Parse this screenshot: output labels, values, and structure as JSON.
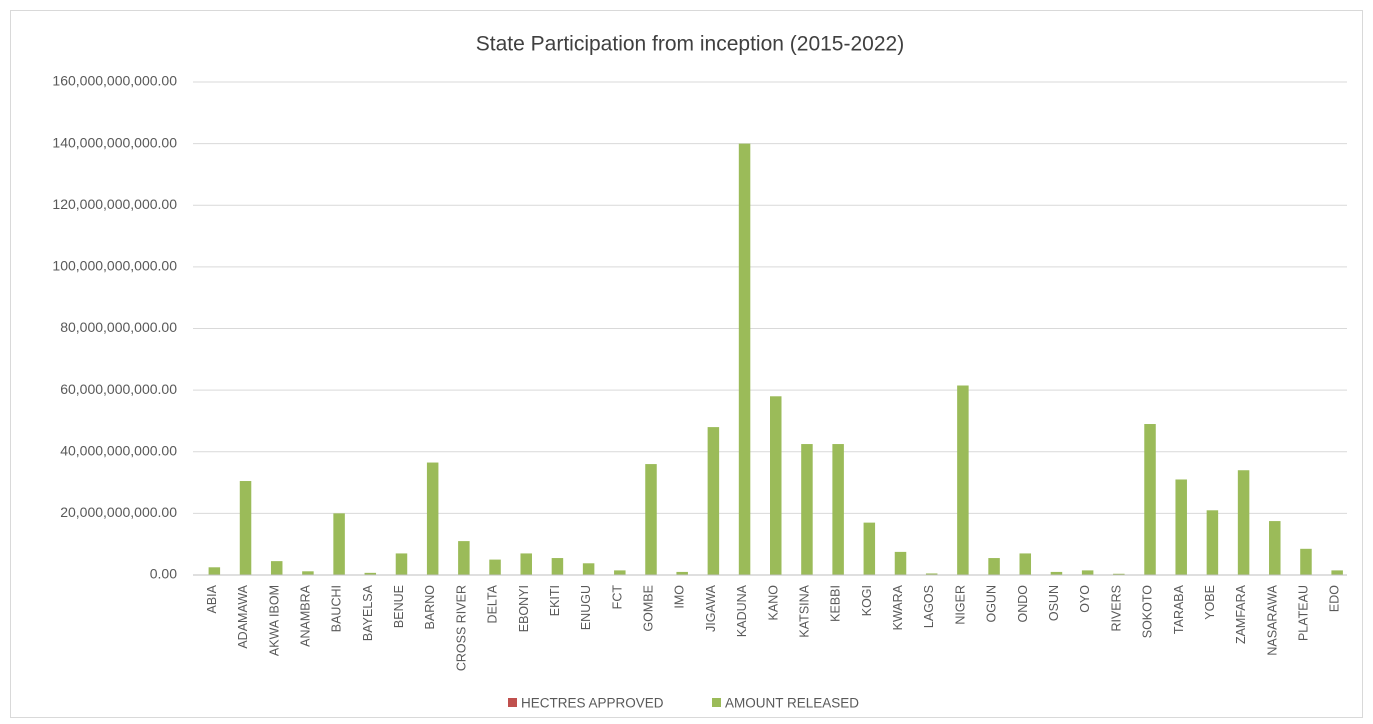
{
  "chart_data": {
    "type": "bar",
    "title": "State Participation  from inception (2015-2022)",
    "categories": [
      "ABIA",
      "ADAMAWA",
      "AKWA IBOM",
      "ANAMBRA",
      "BAUCHI",
      "BAYELSA",
      "BENUE",
      "BARNO",
      "CROSS RIVER",
      "DELTA",
      "EBONYI",
      "EKITI",
      "ENUGU",
      "FCT",
      "GOMBE",
      "IMO",
      "JIGAWA",
      "KADUNA",
      "KANO",
      "KATSINA",
      "KEBBI",
      "KOGI",
      "KWARA",
      "LAGOS",
      "NIGER",
      "OGUN",
      "ONDO",
      "OSUN",
      "OYO",
      "RIVERS",
      "SOKOTO",
      "TARABA",
      "YOBE",
      "ZAMFARA",
      "NASARAWA",
      "PLATEAU",
      "EDO"
    ],
    "series": [
      {
        "name": "HECTRES APPROVED",
        "color": "#c0504d",
        "values": [
          0,
          0,
          0,
          0,
          0,
          0,
          0,
          0,
          0,
          0,
          0,
          0,
          0,
          0,
          0,
          0,
          0,
          0,
          0,
          0,
          0,
          0,
          0,
          0,
          0,
          0,
          0,
          0,
          0,
          0,
          0,
          0,
          0,
          0,
          0,
          0,
          0
        ]
      },
      {
        "name": "AMOUNT RELEASED",
        "color": "#9bbb59",
        "values": [
          2500000000,
          30500000000,
          4500000000,
          1200000000,
          20000000000,
          700000000,
          7000000000,
          36500000000,
          11000000000,
          5000000000,
          7000000000,
          5500000000,
          3800000000,
          1500000000,
          36000000000,
          1000000000,
          48000000000,
          140000000000,
          58000000000,
          42500000000,
          42500000000,
          17000000000,
          7500000000,
          500000000,
          61500000000,
          5500000000,
          7000000000,
          1000000000,
          1500000000,
          400000000,
          49000000000,
          31000000000,
          21000000000,
          34000000000,
          17500000000,
          8500000000,
          1500000000
        ]
      }
    ],
    "ylim": [
      0,
      160000000000
    ],
    "yticks": [
      {
        "value": 0,
        "label": "0.00"
      },
      {
        "value": 20000000000,
        "label": "20,000,000,000.00"
      },
      {
        "value": 40000000000,
        "label": "40,000,000,000.00"
      },
      {
        "value": 60000000000,
        "label": "60,000,000,000.00"
      },
      {
        "value": 80000000000,
        "label": "80,000,000,000.00"
      },
      {
        "value": 100000000000,
        "label": "100,000,000,000.00"
      },
      {
        "value": 120000000000,
        "label": "120,000,000,000.00"
      },
      {
        "value": 140000000000,
        "label": "140,000,000,000.00"
      },
      {
        "value": 160000000000,
        "label": "160,000,000,000.00"
      }
    ],
    "grid": true,
    "legend": "bottom"
  }
}
